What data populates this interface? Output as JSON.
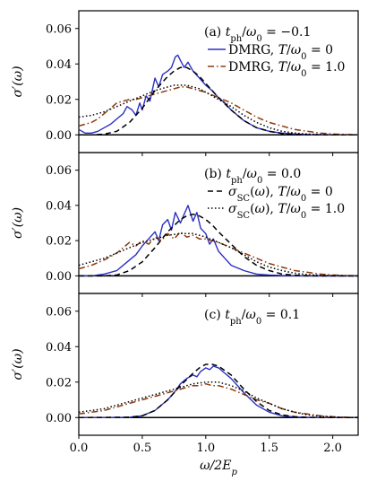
{
  "chart_data": [
    {
      "type": "line",
      "panel": "a",
      "annotation": "(a) t_ph/ω0 = −0.1",
      "ylabel": "σ′(ω)",
      "xlim": [
        0.0,
        2.2
      ],
      "ylim": [
        -0.01,
        0.07
      ],
      "yticks": [
        "0.00",
        "0.02",
        "0.04",
        "0.06"
      ],
      "legend": [
        "DMRG, T/ω0 = 0",
        "DMRG, T/ω0 = 1.0"
      ],
      "legend_position": "top-right",
      "series": [
        {
          "name": "DMRG, T/ω0 = 0",
          "color": "#2b2fc4",
          "style": "solid",
          "x": [
            0.0,
            0.05,
            0.1,
            0.15,
            0.2,
            0.25,
            0.3,
            0.35,
            0.38,
            0.42,
            0.45,
            0.48,
            0.5,
            0.53,
            0.56,
            0.6,
            0.63,
            0.66,
            0.7,
            0.73,
            0.76,
            0.78,
            0.8,
            0.83,
            0.86,
            0.9,
            0.95,
            1.0,
            1.05,
            1.1,
            1.15,
            1.2,
            1.3,
            1.4,
            1.5,
            1.6,
            1.7,
            1.8,
            1.9,
            2.0,
            2.1,
            2.2
          ],
          "y": [
            0.003,
            0.001,
            0.001,
            0.002,
            0.004,
            0.006,
            0.009,
            0.012,
            0.016,
            0.014,
            0.011,
            0.018,
            0.014,
            0.022,
            0.019,
            0.032,
            0.027,
            0.034,
            0.036,
            0.038,
            0.044,
            0.045,
            0.042,
            0.038,
            0.041,
            0.036,
            0.032,
            0.028,
            0.025,
            0.021,
            0.018,
            0.014,
            0.008,
            0.004,
            0.002,
            0.001,
            0.0005,
            0.0002,
            0.0001,
            0.0,
            0.0,
            0.0
          ]
        },
        {
          "name": "DMRG, T/ω0 = 1.0",
          "color": "#8b3a0e",
          "style": "dashdot",
          "x": [
            0.0,
            0.05,
            0.1,
            0.15,
            0.2,
            0.25,
            0.3,
            0.35,
            0.4,
            0.45,
            0.5,
            0.55,
            0.6,
            0.65,
            0.7,
            0.75,
            0.8,
            0.85,
            0.9,
            0.95,
            1.0,
            1.1,
            1.2,
            1.3,
            1.4,
            1.5,
            1.6,
            1.7,
            1.8,
            1.9,
            2.0,
            2.1,
            2.2
          ],
          "y": [
            0.005,
            0.006,
            0.007,
            0.009,
            0.012,
            0.015,
            0.018,
            0.019,
            0.02,
            0.02,
            0.021,
            0.022,
            0.023,
            0.024,
            0.025,
            0.026,
            0.027,
            0.027,
            0.026,
            0.025,
            0.024,
            0.021,
            0.018,
            0.014,
            0.01,
            0.007,
            0.005,
            0.003,
            0.002,
            0.001,
            0.0005,
            0.0002,
            0.0001
          ]
        },
        {
          "name": "",
          "color": "#000000",
          "style": "dashed",
          "x": [
            0.0,
            0.1,
            0.2,
            0.3,
            0.4,
            0.5,
            0.6,
            0.65,
            0.7,
            0.75,
            0.8,
            0.85,
            0.9,
            0.95,
            1.0,
            1.1,
            1.2,
            1.3,
            1.4,
            1.5,
            1.6,
            1.7,
            1.8,
            1.9,
            2.0,
            2.1,
            2.2
          ],
          "y": [
            0.0,
            0.0,
            0.0004,
            0.002,
            0.007,
            0.015,
            0.025,
            0.029,
            0.033,
            0.036,
            0.038,
            0.038,
            0.036,
            0.033,
            0.029,
            0.021,
            0.014,
            0.008,
            0.004,
            0.002,
            0.0008,
            0.0003,
            0.0001,
            0.0,
            0.0,
            0.0,
            0.0
          ]
        },
        {
          "name": "",
          "color": "#000000",
          "style": "dotted",
          "x": [
            0.0,
            0.1,
            0.2,
            0.3,
            0.4,
            0.5,
            0.6,
            0.65,
            0.7,
            0.75,
            0.8,
            0.85,
            0.9,
            0.95,
            1.0,
            1.1,
            1.2,
            1.3,
            1.4,
            1.5,
            1.6,
            1.7,
            1.8,
            1.9,
            2.0,
            2.1,
            2.2
          ],
          "y": [
            0.01,
            0.011,
            0.013,
            0.016,
            0.019,
            0.022,
            0.025,
            0.026,
            0.027,
            0.028,
            0.028,
            0.028,
            0.027,
            0.026,
            0.024,
            0.02,
            0.016,
            0.011,
            0.007,
            0.004,
            0.002,
            0.001,
            0.0005,
            0.0002,
            0.0,
            0.0,
            0.0
          ]
        }
      ]
    },
    {
      "type": "line",
      "panel": "b",
      "annotation": "(b) t_ph/ω0 = 0.0",
      "ylabel": "σ′(ω)",
      "xlim": [
        0.0,
        2.2
      ],
      "ylim": [
        -0.01,
        0.07
      ],
      "yticks": [
        "0.00",
        "0.02",
        "0.04",
        "0.06"
      ],
      "legend": [
        "σSC(ω), T/ω0 = 0",
        "σSC(ω), T/ω0 = 1.0"
      ],
      "legend_position": "top-right",
      "series": [
        {
          "name": "",
          "color": "#2b2fc4",
          "style": "solid",
          "x": [
            0.0,
            0.1,
            0.2,
            0.3,
            0.35,
            0.4,
            0.45,
            0.5,
            0.55,
            0.6,
            0.63,
            0.66,
            0.7,
            0.73,
            0.76,
            0.8,
            0.83,
            0.86,
            0.9,
            0.93,
            0.96,
            1.0,
            1.03,
            1.06,
            1.1,
            1.15,
            1.2,
            1.3,
            1.4,
            1.5,
            1.6,
            1.7,
            1.8,
            1.9,
            2.0,
            2.1,
            2.2
          ],
          "y": [
            0.0,
            0.0,
            0.001,
            0.003,
            0.006,
            0.009,
            0.012,
            0.017,
            0.021,
            0.025,
            0.02,
            0.029,
            0.032,
            0.026,
            0.036,
            0.03,
            0.035,
            0.04,
            0.031,
            0.036,
            0.027,
            0.024,
            0.018,
            0.021,
            0.014,
            0.01,
            0.006,
            0.003,
            0.001,
            0.0005,
            0.0002,
            0.0001,
            0.0,
            0.0,
            0.0,
            0.0,
            0.0
          ]
        },
        {
          "name": "",
          "color": "#8b3a0e",
          "style": "dashdot",
          "x": [
            0.0,
            0.1,
            0.2,
            0.3,
            0.35,
            0.4,
            0.45,
            0.5,
            0.55,
            0.6,
            0.65,
            0.7,
            0.75,
            0.8,
            0.85,
            0.9,
            0.95,
            1.0,
            1.1,
            1.2,
            1.3,
            1.4,
            1.5,
            1.6,
            1.7,
            1.8,
            1.9,
            2.0,
            2.1,
            2.2
          ],
          "y": [
            0.004,
            0.006,
            0.009,
            0.013,
            0.016,
            0.019,
            0.017,
            0.02,
            0.018,
            0.022,
            0.02,
            0.024,
            0.021,
            0.025,
            0.022,
            0.023,
            0.021,
            0.021,
            0.019,
            0.016,
            0.013,
            0.01,
            0.007,
            0.005,
            0.003,
            0.002,
            0.001,
            0.0005,
            0.0002,
            0.0001
          ]
        },
        {
          "name": "σSC(ω), T/ω0 = 0",
          "color": "#000000",
          "style": "dashed",
          "x": [
            0.0,
            0.2,
            0.3,
            0.4,
            0.5,
            0.6,
            0.7,
            0.8,
            0.85,
            0.9,
            0.95,
            1.0,
            1.05,
            1.1,
            1.2,
            1.3,
            1.4,
            1.5,
            1.6,
            1.7,
            1.8,
            1.9,
            2.0,
            2.2
          ],
          "y": [
            0.0,
            0.0,
            0.0005,
            0.003,
            0.008,
            0.016,
            0.025,
            0.032,
            0.034,
            0.035,
            0.034,
            0.032,
            0.029,
            0.025,
            0.018,
            0.011,
            0.006,
            0.003,
            0.001,
            0.0004,
            0.0001,
            0.0,
            0.0,
            0.0
          ]
        },
        {
          "name": "σSC(ω), T/ω0 = 1.0",
          "color": "#000000",
          "style": "dotted",
          "x": [
            0.0,
            0.1,
            0.2,
            0.3,
            0.4,
            0.5,
            0.6,
            0.7,
            0.8,
            0.85,
            0.9,
            0.95,
            1.0,
            1.1,
            1.2,
            1.3,
            1.4,
            1.5,
            1.6,
            1.7,
            1.8,
            1.9,
            2.0,
            2.2
          ],
          "y": [
            0.006,
            0.008,
            0.01,
            0.013,
            0.016,
            0.019,
            0.021,
            0.023,
            0.024,
            0.024,
            0.024,
            0.023,
            0.022,
            0.019,
            0.016,
            0.012,
            0.008,
            0.005,
            0.003,
            0.0015,
            0.0007,
            0.0003,
            0.0001,
            0.0
          ]
        }
      ]
    },
    {
      "type": "line",
      "panel": "c",
      "annotation": "(c) t_ph/ω0 = 0.1",
      "ylabel": "σ′(ω)",
      "xlabel": "ω/2Ep",
      "xlim": [
        0.0,
        2.2
      ],
      "ylim": [
        -0.01,
        0.07
      ],
      "yticks": [
        "0.00",
        "0.02",
        "0.04",
        "0.06"
      ],
      "xticks": [
        "0.0",
        "0.5",
        "1.0",
        "1.5",
        "2.0"
      ],
      "series": [
        {
          "name": "",
          "color": "#2b2fc4",
          "style": "solid",
          "x": [
            0.0,
            0.2,
            0.4,
            0.5,
            0.6,
            0.7,
            0.75,
            0.8,
            0.85,
            0.9,
            0.93,
            0.96,
            1.0,
            1.03,
            1.06,
            1.1,
            1.15,
            1.2,
            1.3,
            1.4,
            1.5,
            1.6,
            1.7,
            1.8,
            2.0,
            2.2
          ],
          "y": [
            0.0,
            0.0,
            0.0002,
            0.001,
            0.004,
            0.01,
            0.014,
            0.019,
            0.022,
            0.024,
            0.023,
            0.026,
            0.028,
            0.027,
            0.029,
            0.028,
            0.025,
            0.022,
            0.014,
            0.007,
            0.003,
            0.001,
            0.0003,
            0.0001,
            0.0,
            0.0
          ]
        },
        {
          "name": "",
          "color": "#8b3a0e",
          "style": "dashdot",
          "x": [
            0.0,
            0.1,
            0.2,
            0.3,
            0.4,
            0.5,
            0.6,
            0.7,
            0.8,
            0.9,
            0.95,
            1.0,
            1.05,
            1.1,
            1.2,
            1.3,
            1.4,
            1.5,
            1.6,
            1.7,
            1.8,
            1.9,
            2.0,
            2.1,
            2.2
          ],
          "y": [
            0.002,
            0.003,
            0.004,
            0.006,
            0.008,
            0.01,
            0.012,
            0.014,
            0.016,
            0.018,
            0.018,
            0.019,
            0.018,
            0.018,
            0.016,
            0.013,
            0.01,
            0.008,
            0.005,
            0.003,
            0.002,
            0.001,
            0.0005,
            0.0002,
            0.0001
          ]
        },
        {
          "name": "",
          "color": "#000000",
          "style": "dashed",
          "x": [
            0.0,
            0.4,
            0.5,
            0.6,
            0.7,
            0.8,
            0.9,
            0.95,
            1.0,
            1.05,
            1.1,
            1.2,
            1.3,
            1.4,
            1.5,
            1.6,
            1.7,
            1.8,
            2.0,
            2.2
          ],
          "y": [
            0.0,
            0.0002,
            0.001,
            0.004,
            0.01,
            0.018,
            0.025,
            0.028,
            0.03,
            0.03,
            0.029,
            0.024,
            0.016,
            0.009,
            0.004,
            0.0015,
            0.0005,
            0.0001,
            0.0,
            0.0
          ]
        },
        {
          "name": "",
          "color": "#000000",
          "style": "dotted",
          "x": [
            0.0,
            0.1,
            0.2,
            0.3,
            0.4,
            0.5,
            0.6,
            0.7,
            0.8,
            0.9,
            1.0,
            1.05,
            1.1,
            1.2,
            1.3,
            1.4,
            1.5,
            1.6,
            1.7,
            1.8,
            1.9,
            2.0,
            2.1,
            2.2
          ],
          "y": [
            0.003,
            0.004,
            0.005,
            0.007,
            0.009,
            0.011,
            0.013,
            0.015,
            0.017,
            0.019,
            0.02,
            0.02,
            0.02,
            0.018,
            0.015,
            0.011,
            0.008,
            0.005,
            0.003,
            0.0015,
            0.0007,
            0.0003,
            0.0001,
            0.0
          ]
        }
      ]
    }
  ]
}
